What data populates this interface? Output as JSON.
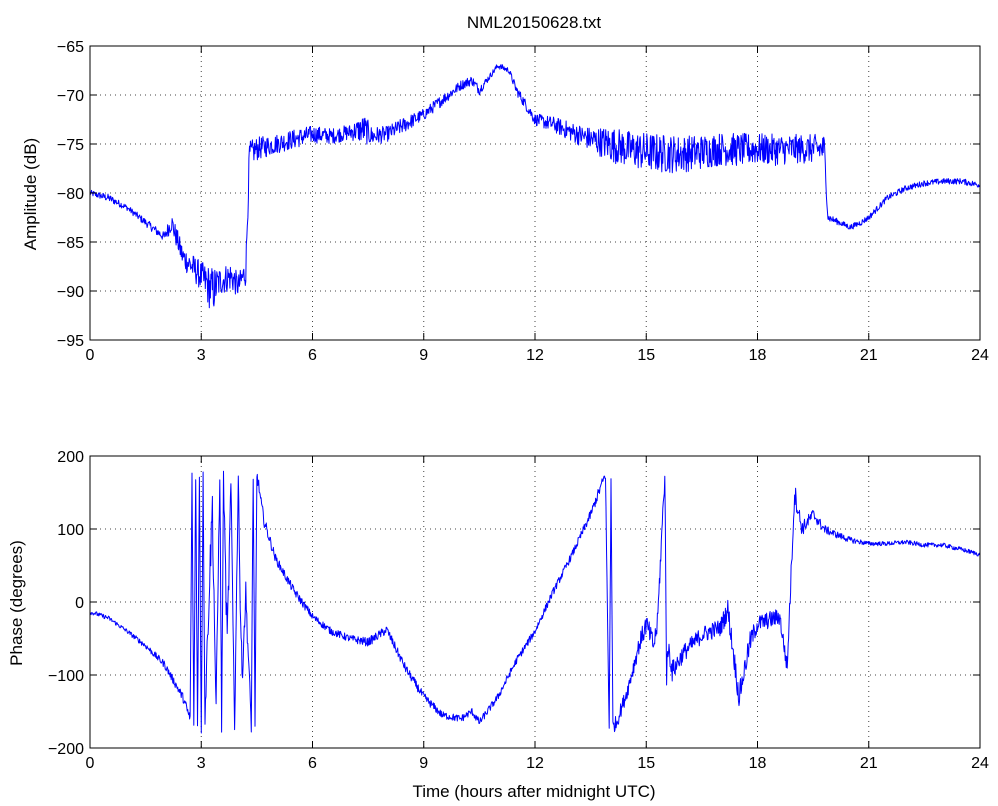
{
  "chart_data": [
    {
      "type": "line",
      "title": "NML20150628.txt",
      "xlabel": "",
      "ylabel": "Amplitude (dB)",
      "xlim": [
        0,
        24
      ],
      "ylim": [
        -95,
        -65
      ],
      "xticks": [
        0,
        3,
        6,
        9,
        12,
        15,
        18,
        21,
        24
      ],
      "yticks": [
        -95,
        -90,
        -85,
        -80,
        -75,
        -70,
        -65
      ],
      "xtick_labels": [
        "0",
        "3",
        "6",
        "9",
        "12",
        "15",
        "18",
        "21",
        "24"
      ],
      "ytick_labels": [
        "−95",
        "−90",
        "−85",
        "−80",
        "−75",
        "−70",
        "−65"
      ],
      "grid": true,
      "series": [
        {
          "color": "#0000ff",
          "x": [
            0,
            0.5,
            1.0,
            1.5,
            2.0,
            2.2,
            2.5,
            3.0,
            3.3,
            3.5,
            3.8,
            4.0,
            4.2,
            4.3,
            4.5,
            5.0,
            5.5,
            6.0,
            6.5,
            7.0,
            7.4,
            7.6,
            8.0,
            8.5,
            9.0,
            9.5,
            10.0,
            10.3,
            10.5,
            10.8,
            11.0,
            11.3,
            11.5,
            12.0,
            12.5,
            13.0,
            13.5,
            14.0,
            14.5,
            15.0,
            15.5,
            16.0,
            16.5,
            17.0,
            17.5,
            18.0,
            18.5,
            19.0,
            19.5,
            19.8,
            19.9,
            20.2,
            20.5,
            20.8,
            21.0,
            21.5,
            22.0,
            22.5,
            23.0,
            23.5,
            24.0
          ],
          "y": [
            -80.0,
            -80.5,
            -81.5,
            -83.0,
            -84.5,
            -83.0,
            -86.5,
            -88.5,
            -90.0,
            -89.0,
            -88.5,
            -89.5,
            -88.0,
            -76.0,
            -75.5,
            -75.0,
            -74.5,
            -74.0,
            -74.2,
            -73.8,
            -73.5,
            -74.2,
            -74.0,
            -73.0,
            -72.0,
            -70.5,
            -69.0,
            -68.5,
            -69.5,
            -68.0,
            -67.0,
            -67.5,
            -69.5,
            -72.5,
            -73.0,
            -73.8,
            -74.5,
            -75.0,
            -75.5,
            -75.8,
            -76.0,
            -76.0,
            -75.8,
            -75.5,
            -75.6,
            -75.5,
            -75.6,
            -75.5,
            -75.5,
            -75.5,
            -82.5,
            -83.0,
            -83.5,
            -83.0,
            -82.5,
            -80.5,
            -79.5,
            -79.0,
            -78.8,
            -78.8,
            -79.2
          ],
          "noise": [
            0.3,
            0.4,
            0.3,
            0.4,
            0.5,
            1.0,
            1.2,
            1.5,
            2.5,
            1.5,
            1.5,
            1.2,
            1.5,
            1.3,
            1.2,
            1.0,
            1.0,
            0.9,
            0.8,
            0.8,
            1.5,
            1.0,
            0.8,
            0.8,
            0.6,
            0.6,
            0.5,
            0.5,
            0.5,
            0.3,
            0.3,
            0.3,
            0.5,
            0.6,
            0.8,
            1.0,
            1.2,
            1.8,
            1.9,
            2.0,
            2.0,
            1.9,
            1.8,
            1.7,
            1.7,
            1.6,
            1.6,
            1.5,
            1.5,
            1.5,
            0.4,
            0.3,
            0.3,
            0.3,
            0.3,
            0.3,
            0.3,
            0.3,
            0.3,
            0.3,
            0.3
          ]
        }
      ]
    },
    {
      "type": "line",
      "title": "",
      "xlabel": "Time (hours after midnight UTC)",
      "ylabel": "Phase (degrees)",
      "xlim": [
        0,
        24
      ],
      "ylim": [
        -200,
        200
      ],
      "xticks": [
        0,
        3,
        6,
        9,
        12,
        15,
        18,
        21,
        24
      ],
      "yticks": [
        -200,
        -100,
        0,
        100,
        200
      ],
      "xtick_labels": [
        "0",
        "3",
        "6",
        "9",
        "12",
        "15",
        "18",
        "21",
        "24"
      ],
      "ytick_labels": [
        "−200",
        "−100",
        "0",
        "100",
        "200"
      ],
      "grid": true,
      "series": [
        {
          "color": "#0000ff",
          "x": [
            0,
            0.1,
            0.5,
            1.0,
            1.5,
            2.0,
            2.5,
            2.7,
            2.75,
            2.8,
            2.85,
            2.9,
            2.95,
            3.0,
            3.05,
            3.1,
            3.2,
            3.3,
            3.4,
            3.5,
            3.55,
            3.6,
            3.7,
            3.8,
            3.9,
            4.0,
            4.05,
            4.1,
            4.2,
            4.35,
            4.4,
            4.45,
            4.5,
            4.55,
            4.6,
            4.7,
            5.0,
            5.5,
            6.0,
            6.5,
            7.0,
            7.5,
            8.0,
            8.5,
            9.0,
            9.5,
            10.0,
            10.3,
            10.5,
            11.0,
            11.5,
            12.0,
            12.5,
            13.0,
            13.5,
            13.9,
            14.0,
            14.05,
            14.1,
            14.2,
            14.5,
            14.8,
            15.0,
            15.2,
            15.3,
            15.5,
            15.55,
            15.6,
            15.7,
            16.0,
            16.2,
            16.5,
            17.0,
            17.2,
            17.4,
            17.5,
            17.8,
            18.0,
            18.3,
            18.6,
            18.8,
            19.0,
            19.2,
            19.5,
            19.8,
            20.0,
            20.5,
            21.0,
            21.5,
            22.0,
            22.5,
            23.0,
            23.5,
            24.0
          ],
          "y": [
            -15,
            -15,
            -22,
            -40,
            -60,
            -85,
            -130,
            -160,
            170,
            -170,
            175,
            -175,
            175,
            -180,
            170,
            -160,
            0,
            130,
            -150,
            175,
            -170,
            170,
            -60,
            160,
            -170,
            175,
            0,
            -100,
            10,
            -170,
            175,
            -175,
            175,
            160,
            140,
            110,
            60,
            15,
            -20,
            -40,
            -50,
            -55,
            -38,
            -90,
            -130,
            -155,
            -160,
            -150,
            -165,
            -130,
            -80,
            -40,
            15,
            65,
            120,
            175,
            -175,
            170,
            -170,
            -165,
            -120,
            -60,
            -30,
            -60,
            -30,
            175,
            -100,
            -60,
            -95,
            -70,
            -60,
            -45,
            -35,
            -10,
            -90,
            -130,
            -55,
            -30,
            -25,
            -20,
            -90,
            150,
            100,
            120,
            100,
            95,
            85,
            80,
            80,
            82,
            78,
            78,
            72,
            65
          ],
          "noise": [
            2,
            3,
            3,
            3,
            4,
            5,
            6,
            8,
            10,
            10,
            10,
            10,
            10,
            10,
            10,
            15,
            30,
            30,
            20,
            10,
            10,
            10,
            30,
            20,
            10,
            10,
            20,
            20,
            20,
            10,
            10,
            10,
            10,
            8,
            8,
            8,
            6,
            6,
            5,
            5,
            5,
            6,
            6,
            6,
            6,
            5,
            5,
            5,
            5,
            5,
            5,
            5,
            5,
            5,
            6,
            8,
            10,
            10,
            10,
            10,
            10,
            12,
            15,
            15,
            15,
            15,
            20,
            15,
            15,
            12,
            12,
            12,
            12,
            15,
            15,
            15,
            15,
            12,
            12,
            12,
            12,
            15,
            10,
            8,
            6,
            5,
            4,
            3,
            3,
            3,
            3,
            3,
            3,
            3
          ]
        }
      ]
    }
  ]
}
